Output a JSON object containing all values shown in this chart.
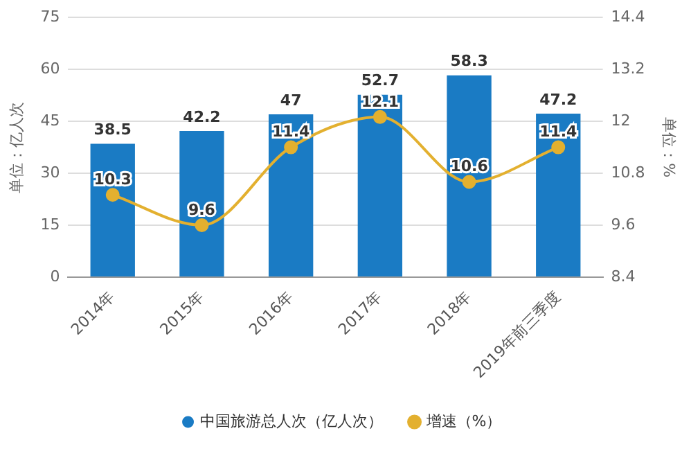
{
  "chart_data": {
    "type": "bar",
    "categories": [
      "2014年",
      "2015年",
      "2016年",
      "2017年",
      "2018年",
      "2019年前三季度"
    ],
    "series": [
      {
        "name": "中国旅游总人次（亿人次）",
        "color": "#1a7bc4",
        "values": [
          38.5,
          42.2,
          47,
          52.7,
          58.3,
          47.2
        ]
      },
      {
        "name": "增速（%）",
        "type": "line",
        "axis": "y2",
        "color": "#e3b02f",
        "values": [
          10.3,
          9.6,
          11.4,
          12.1,
          10.6,
          11.4
        ]
      }
    ],
    "ylabel": "单位：亿人次",
    "y2label": "单位：%",
    "ylim": [
      0,
      75
    ],
    "yticks": [
      0,
      15,
      30,
      45,
      60,
      75
    ],
    "y2lim": [
      8.4,
      14.4
    ],
    "y2ticks": [
      8.4,
      9.6,
      10.8,
      12,
      13.2,
      14.4
    ],
    "grid": "y",
    "legend": "bottom",
    "marker": "circle",
    "data_labels": true
  }
}
